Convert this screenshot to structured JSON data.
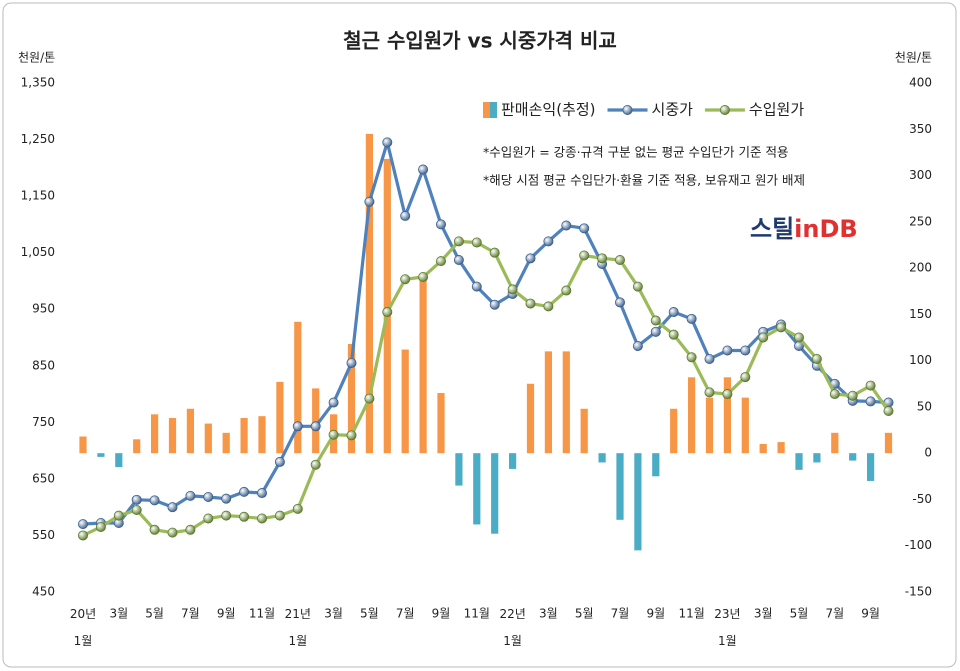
{
  "chart_data": {
    "type": "bar_line_combo",
    "title": "철근 수입원가 vs 시중가격 비교",
    "y_label": "천원/톤",
    "y2_label": "천원/톤",
    "notes": [
      "*수입원가 = 강종·규격 구분 없는 평균 수입단가 기준 적용",
      "*해당 시점 평균 수입단가·환율 기준 적용, 보유재고 원가 배제"
    ],
    "logo": [
      "스틸",
      "in",
      "DB"
    ],
    "legend": "upper right",
    "categories": [
      "20년 1월",
      null,
      "3월",
      null,
      "5월",
      null,
      "7월",
      null,
      "9월",
      null,
      "11월",
      null,
      "21년 1월",
      null,
      "3월",
      null,
      "5월",
      null,
      "7월",
      null,
      "9월",
      null,
      "11월",
      null,
      "22년 1월",
      null,
      "3월",
      null,
      "5월",
      null,
      "7월",
      null,
      "9월",
      null,
      "11월",
      null,
      "23년 1월",
      null,
      "3월",
      null,
      "5월",
      null,
      "7월",
      null,
      "9월",
      null
    ],
    "ylim": [
      450,
      1350
    ],
    "yticks": [
      450,
      550,
      650,
      750,
      850,
      950,
      {
        "value": 1050,
        "label": "1,050"
      },
      {
        "value": 1150,
        "label": "1,150"
      },
      {
        "value": 1250,
        "label": "1,250"
      },
      {
        "value": 1350,
        "label": "1,350"
      }
    ],
    "y2lim": [
      -150,
      400
    ],
    "y2ticks": [
      -150,
      -100,
      -50,
      0,
      50,
      100,
      150,
      200,
      250,
      300,
      350,
      400
    ],
    "series": [
      {
        "name": "판매손익(추정)",
        "kind": "bar",
        "axis": "y2",
        "color": "#f79646",
        "negative_color": "#4bacc6",
        "values": [
          18,
          -4,
          -15,
          15,
          42,
          38,
          48,
          32,
          22,
          38,
          40,
          77,
          142,
          70,
          42,
          118,
          345,
          318,
          112,
          190,
          65,
          -35,
          -77,
          -87,
          -17,
          75,
          110,
          110,
          48,
          -10,
          -72,
          -105,
          -25,
          48,
          82,
          60,
          82,
          60,
          10,
          12,
          -18,
          -10,
          22,
          -8,
          -30,
          22
        ]
      },
      {
        "name": "시중가",
        "kind": "line",
        "color": "#4f81bd",
        "marker_color": "#3a5f8c",
        "values": [
          570,
          572,
          572,
          613,
          612,
          600,
          620,
          618,
          615,
          627,
          625,
          680,
          743,
          743,
          785,
          855,
          1140,
          1245,
          1115,
          1197,
          1100,
          1037,
          990,
          958,
          977,
          1040,
          1070,
          1098,
          1093,
          1030,
          962,
          885,
          910,
          945,
          933,
          862,
          877,
          877,
          910,
          923,
          885,
          850,
          818,
          788,
          787,
          785
        ]
      },
      {
        "name": "수입원가",
        "kind": "line",
        "color": "#9bbb59",
        "marker_color": "#5a7a2a",
        "values": [
          550,
          565,
          585,
          595,
          560,
          555,
          560,
          580,
          585,
          583,
          580,
          585,
          597,
          675,
          728,
          727,
          792,
          945,
          1003,
          1007,
          1035,
          1070,
          1068,
          1050,
          985,
          960,
          955,
          983,
          1045,
          1040,
          1037,
          990,
          930,
          905,
          865,
          803,
          800,
          830,
          900,
          918,
          900,
          862,
          800,
          797,
          815,
          770
        ]
      }
    ]
  }
}
